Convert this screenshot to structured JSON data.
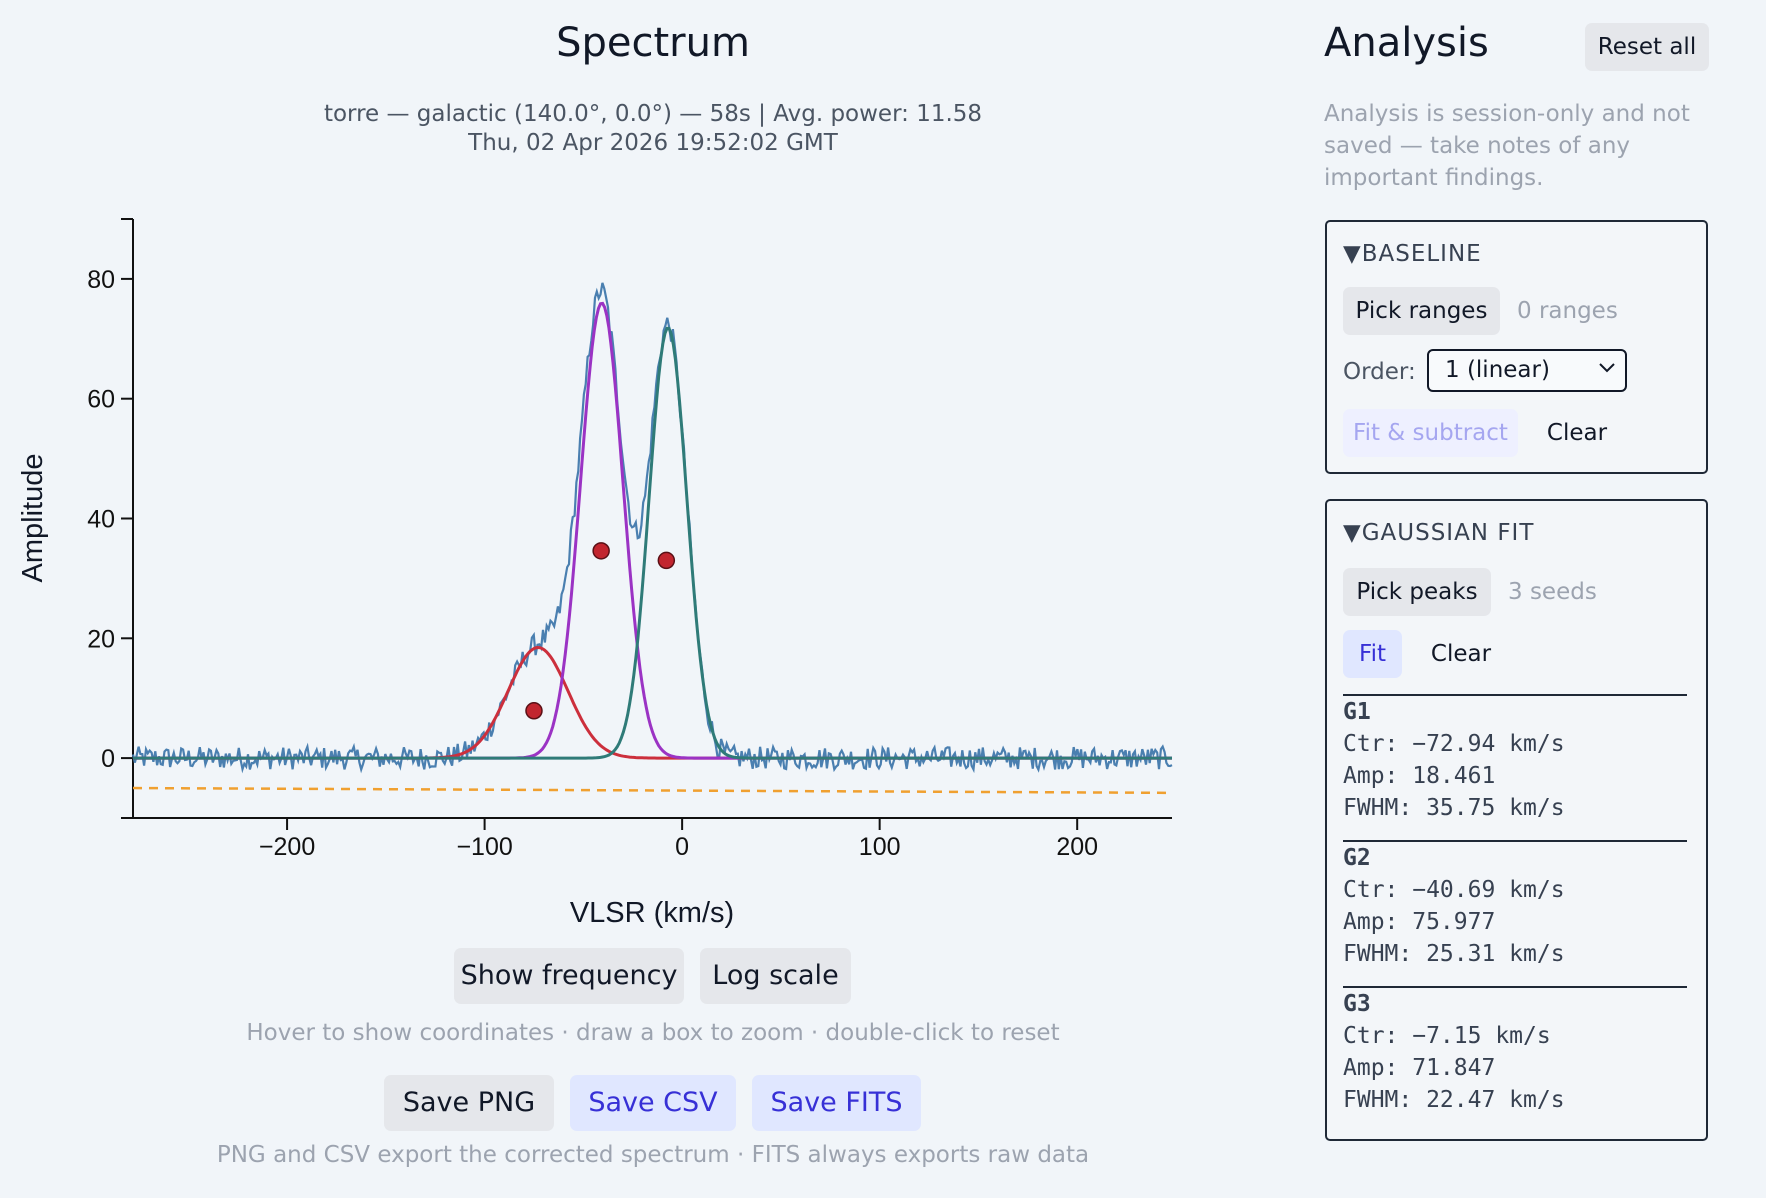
{
  "page": {
    "title": "Spectrum",
    "subtitle_line1": "torre — galactic (140.0°, 0.0°) — 58s | Avg. power: 11.58",
    "subtitle_line2": "Thu, 02 Apr 2026 19:52:02 GMT"
  },
  "chart_data": {
    "type": "line",
    "xlabel": "VLSR (km/s)",
    "ylabel": "Amplitude",
    "xlim": [
      -278,
      248
    ],
    "ylim": [
      -10,
      90
    ],
    "x_ticks": [
      -200,
      -100,
      0,
      100,
      200
    ],
    "x_tick_labels": [
      "−200",
      "−100",
      "0",
      "100",
      "200"
    ],
    "y_ticks": [
      0,
      20,
      40,
      60,
      80
    ],
    "y_tick_labels": [
      "0",
      "20",
      "40",
      "60",
      "80"
    ],
    "grid": false,
    "colors": {
      "spectrum": "#4a7fb0",
      "g1": "#cc2f3c",
      "g2": "#9b33c4",
      "g3": "#2f7b78",
      "baseline": "#f0a030",
      "seed_marker": "#c2252f"
    },
    "baseline": {
      "style": "dashed",
      "x": [
        -278,
        248
      ],
      "y": [
        -5.0,
        -5.8
      ]
    },
    "gaussians": [
      {
        "name": "G1",
        "center": -72.94,
        "amplitude": 18.461,
        "fwhm": 35.75
      },
      {
        "name": "G2",
        "center": -40.69,
        "amplitude": 75.977,
        "fwhm": 25.31
      },
      {
        "name": "G3",
        "center": -7.15,
        "amplitude": 71.847,
        "fwhm": 22.47
      }
    ],
    "seeds": [
      {
        "x": -75,
        "y": 7.9
      },
      {
        "x": -41,
        "y": 34.6
      },
      {
        "x": -8,
        "y": 33.0
      }
    ],
    "spectrum": {
      "x_start": -278,
      "x_end": 248,
      "noise_sigma": 1.6,
      "peak_x": -40,
      "peak_y": 80,
      "description_series": "observed spectrum (noisy, approx. sum of the three Gaussian components)"
    }
  },
  "plot_buttons": {
    "show_frequency": "Show frequency",
    "log_scale": "Log scale"
  },
  "plot_hint": "Hover to show coordinates · draw a box to zoom · double-click to reset",
  "export": {
    "save_png": "Save PNG",
    "save_csv": "Save CSV",
    "save_fits": "Save FITS",
    "note": "PNG and CSV export the corrected spectrum · FITS always exports raw data"
  },
  "analysis": {
    "title": "Analysis",
    "reset_all": "Reset all",
    "note": "Analysis is session-only and not saved — take notes of any important findings.",
    "baseline": {
      "heading": "BASELINE",
      "pick_ranges": "Pick ranges",
      "ranges_count": "0 ranges",
      "order_label": "Order:",
      "order_value": "1 (linear)",
      "fit_subtract": "Fit & subtract",
      "clear": "Clear"
    },
    "gaussian": {
      "heading": "GAUSSIAN FIT",
      "pick_peaks": "Pick peaks",
      "seeds_count": "3 seeds",
      "fit": "Fit",
      "clear": "Clear",
      "results": [
        {
          "name": "G1",
          "ctr": "Ctr: −72.94 km/s",
          "amp": "Amp: 18.461",
          "fwhm": "FWHM: 35.75 km/s"
        },
        {
          "name": "G2",
          "ctr": "Ctr: −40.69 km/s",
          "amp": "Amp: 75.977",
          "fwhm": "FWHM: 25.31 km/s"
        },
        {
          "name": "G3",
          "ctr": "Ctr: −7.15 km/s",
          "amp": "Amp: 71.847",
          "fwhm": "FWHM: 22.47 km/s"
        }
      ]
    }
  }
}
